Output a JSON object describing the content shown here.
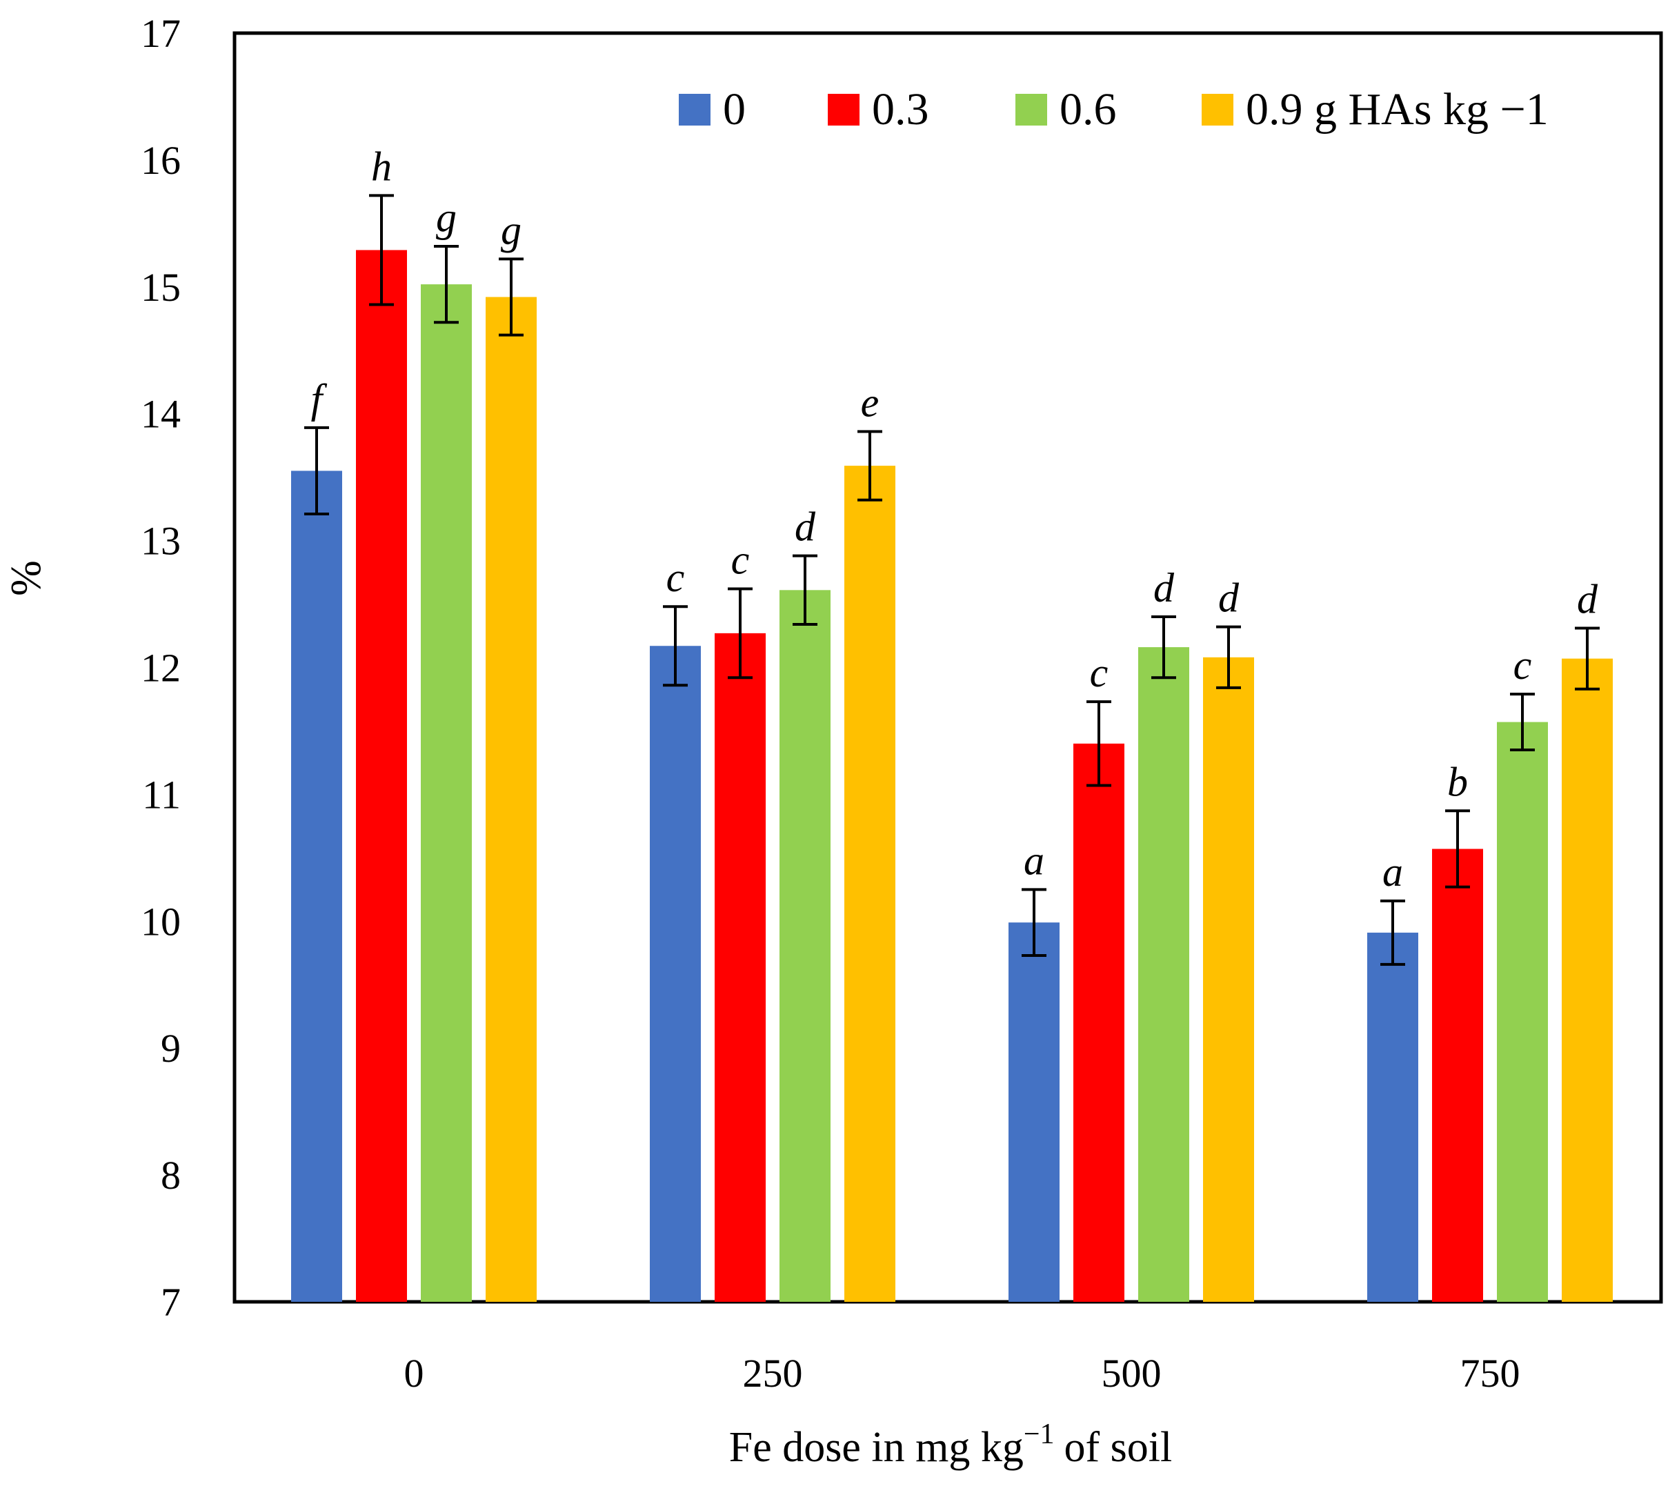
{
  "chart_data": {
    "type": "bar",
    "title": "",
    "xlabel": "Fe dose in mg kg",
    "xlabel_superscript": "−1",
    "xlabel_suffix": "of soil",
    "ylabel": "%",
    "ylim": [
      7,
      17
    ],
    "yticks": [
      "7",
      "8",
      "9",
      "10",
      "11",
      "12",
      "13",
      "14",
      "15",
      "16",
      "17"
    ],
    "categories": [
      "0",
      "250",
      "500",
      "750"
    ],
    "legend_position": "top-right",
    "series": [
      {
        "name": "0",
        "color": "#4472C4",
        "values": [
          13.55,
          12.17,
          9.99,
          9.91
        ],
        "errors": [
          0.34,
          0.31,
          0.26,
          0.25
        ],
        "letters": [
          "f",
          "c",
          "a",
          "a"
        ]
      },
      {
        "name": "0.3",
        "color": "#FF0000",
        "values": [
          15.29,
          12.27,
          11.4,
          10.57
        ],
        "errors": [
          0.43,
          0.35,
          0.33,
          0.3
        ],
        "letters": [
          "h",
          "c",
          "c",
          "b"
        ]
      },
      {
        "name": "0.6",
        "color": "#92D050",
        "values": [
          15.02,
          12.61,
          12.16,
          11.57
        ],
        "errors": [
          0.3,
          0.27,
          0.24,
          0.22
        ],
        "letters": [
          "g",
          "d",
          "d",
          "c"
        ]
      },
      {
        "name": "0.9 g HAs kg −1",
        "color": "#FFC000",
        "values": [
          14.92,
          13.59,
          12.08,
          12.07
        ],
        "errors": [
          0.3,
          0.27,
          0.24,
          0.24
        ],
        "letters": [
          "g",
          "e",
          "d",
          "d"
        ]
      }
    ]
  }
}
